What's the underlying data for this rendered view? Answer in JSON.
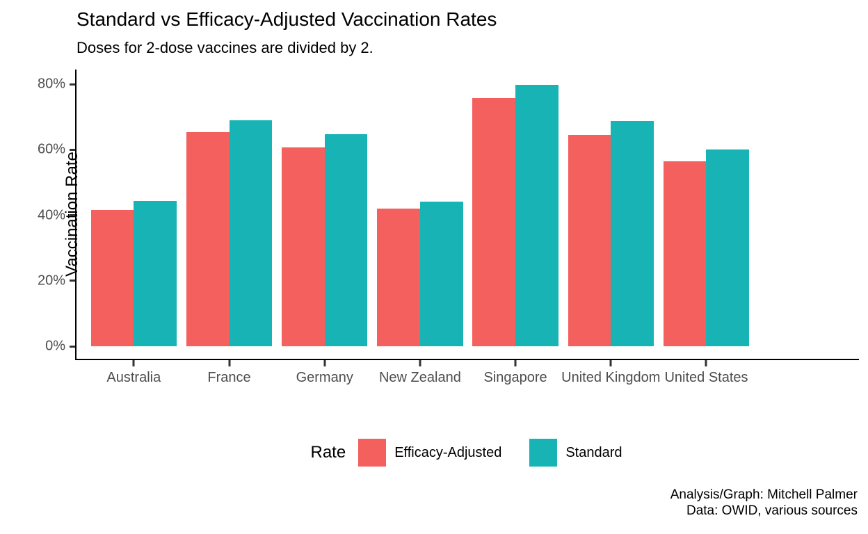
{
  "chart_data": {
    "type": "bar",
    "title": "Standard vs Efficacy-Adjusted Vaccination Rates",
    "subtitle": "Doses for 2-dose vaccines are divided by 2.",
    "ylabel": "Vaccination Rate",
    "xlabel": "",
    "categories": [
      "Australia",
      "France",
      "Germany",
      "New Zealand",
      "Singapore",
      "United Kingdom",
      "United States"
    ],
    "series": [
      {
        "name": "Efficacy-Adjusted",
        "color": "#F4605D",
        "values": [
          41.5,
          65.4,
          60.7,
          42.1,
          75.8,
          64.6,
          56.4
        ]
      },
      {
        "name": "Standard",
        "color": "#18B3B5",
        "values": [
          44.4,
          69.0,
          64.8,
          44.2,
          79.8,
          68.8,
          60.0
        ]
      }
    ],
    "ylim": [
      0,
      80
    ],
    "yticks": [
      {
        "value": 0,
        "label": "0%"
      },
      {
        "value": 20,
        "label": "20%"
      },
      {
        "value": 40,
        "label": "40%"
      },
      {
        "value": 60,
        "label": "60%"
      },
      {
        "value": 80,
        "label": "80%"
      }
    ],
    "grid": false,
    "legend_position": "bottom",
    "legend_title": "Rate",
    "legend_items": [
      {
        "label": "Efficacy-Adjusted",
        "color": "#F4605D"
      },
      {
        "label": "Standard",
        "color": "#18B3B5"
      }
    ],
    "caption_lines": [
      "Analysis/Graph: Mitchell Palmer",
      "Data: OWID, various sources"
    ]
  },
  "colors": {
    "efficacy_adjusted": "#F4605D",
    "standard": "#18B3B5",
    "axis_text": "#4D4D4D",
    "axis_line": "#000000",
    "background": "#FFFFFF"
  }
}
